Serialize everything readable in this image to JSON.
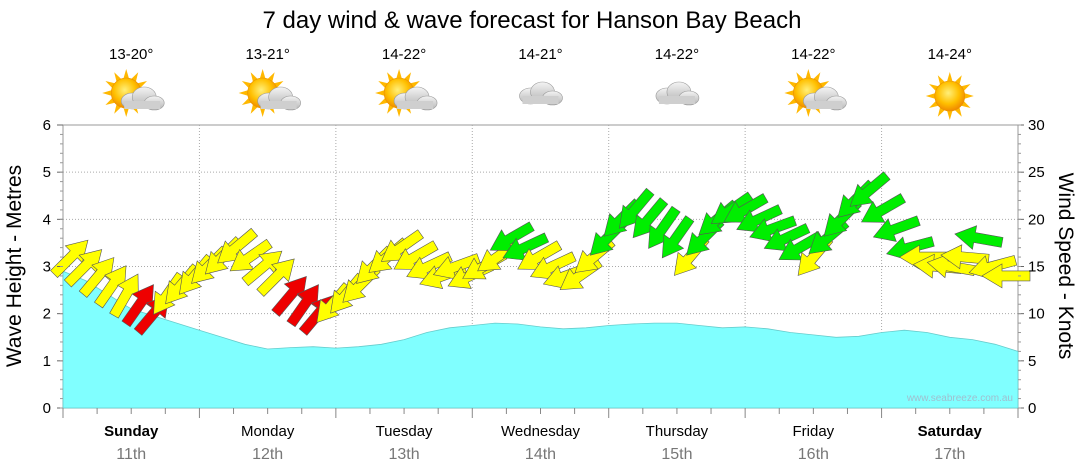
{
  "chart_data": {
    "type": "area",
    "title": "7 day wind & wave forecast for Hanson Bay Beach",
    "ylabel_left": "Wave Height - Metres",
    "ylabel_right": "Wind Speed - Knots",
    "ylim_left": [
      0,
      6
    ],
    "ylim_right": [
      0,
      30
    ],
    "yticks_left": [
      "0",
      "1",
      "2",
      "3",
      "4",
      "5",
      "6"
    ],
    "yticks_right": [
      "0",
      "5",
      "10",
      "15",
      "20",
      "25",
      "30"
    ],
    "watermark": "www.seabreeze.com.au",
    "days": [
      {
        "name": "Sunday",
        "date": "11th",
        "bold": true,
        "temp": "13-20°",
        "weather": "partly-cloudy-icon"
      },
      {
        "name": "Monday",
        "date": "12th",
        "bold": false,
        "temp": "13-21°",
        "weather": "partly-cloudy-icon"
      },
      {
        "name": "Tuesday",
        "date": "13th",
        "bold": false,
        "temp": "14-22°",
        "weather": "partly-cloudy-icon"
      },
      {
        "name": "Wednesday",
        "date": "14th",
        "bold": false,
        "temp": "14-21°",
        "weather": "cloudy-icon"
      },
      {
        "name": "Thursday",
        "date": "15th",
        "bold": false,
        "temp": "14-22°",
        "weather": "cloudy-icon"
      },
      {
        "name": "Friday",
        "date": "16th",
        "bold": false,
        "temp": "14-22°",
        "weather": "partly-cloudy-icon"
      },
      {
        "name": "Saturday",
        "date": "17th",
        "bold": true,
        "temp": "14-24°",
        "weather": "sunny-icon"
      }
    ],
    "wave_height_m": [
      2.9,
      2.7,
      2.4,
      2.1,
      1.95,
      1.8,
      1.65,
      1.5,
      1.35,
      1.25,
      1.28,
      1.3,
      1.27,
      1.3,
      1.35,
      1.45,
      1.6,
      1.7,
      1.75,
      1.8,
      1.78,
      1.72,
      1.68,
      1.7,
      1.75,
      1.78,
      1.8,
      1.8,
      1.75,
      1.7,
      1.72,
      1.68,
      1.6,
      1.55,
      1.5,
      1.52,
      1.6,
      1.65,
      1.6,
      1.5,
      1.45,
      1.35,
      1.2
    ],
    "wind_colors": {
      "light": "#ffff00",
      "moderate": "#00ee00",
      "strong": "#ee0000"
    },
    "wind": [
      {
        "kts": 16,
        "dir": 225,
        "band": "light"
      },
      {
        "kts": 15,
        "dir": 225,
        "band": "light"
      },
      {
        "kts": 14,
        "dir": 220,
        "band": "light"
      },
      {
        "kts": 13,
        "dir": 215,
        "band": "light"
      },
      {
        "kts": 12,
        "dir": 210,
        "band": "light"
      },
      {
        "kts": 11,
        "dir": 215,
        "band": "strong"
      },
      {
        "kts": 10,
        "dir": 220,
        "band": "strong"
      },
      {
        "kts": 12,
        "dir": 35,
        "band": "light"
      },
      {
        "kts": 13,
        "dir": 40,
        "band": "light"
      },
      {
        "kts": 14,
        "dir": 40,
        "band": "light"
      },
      {
        "kts": 15,
        "dir": 45,
        "band": "light"
      },
      {
        "kts": 16,
        "dir": 45,
        "band": "light"
      },
      {
        "kts": 17,
        "dir": 50,
        "band": "light"
      },
      {
        "kts": 16,
        "dir": 55,
        "band": "light"
      },
      {
        "kts": 15,
        "dir": 230,
        "band": "light"
      },
      {
        "kts": 14,
        "dir": 225,
        "band": "light"
      },
      {
        "kts": 12,
        "dir": 220,
        "band": "strong"
      },
      {
        "kts": 11,
        "dir": 215,
        "band": "strong"
      },
      {
        "kts": 10,
        "dir": 220,
        "band": "strong"
      },
      {
        "kts": 11,
        "dir": 40,
        "band": "light"
      },
      {
        "kts": 12,
        "dir": 40,
        "band": "light"
      },
      {
        "kts": 13,
        "dir": 45,
        "band": "light"
      },
      {
        "kts": 15,
        "dir": 45,
        "band": "light"
      },
      {
        "kts": 16,
        "dir": 50,
        "band": "light"
      },
      {
        "kts": 17,
        "dir": 55,
        "band": "light"
      },
      {
        "kts": 16,
        "dir": 60,
        "band": "light"
      },
      {
        "kts": 15,
        "dir": 65,
        "band": "light"
      },
      {
        "kts": 14,
        "dir": 70,
        "band": "light"
      },
      {
        "kts": 15,
        "dir": 70,
        "band": "light"
      },
      {
        "kts": 14,
        "dir": 65,
        "band": "light"
      },
      {
        "kts": 15,
        "dir": 60,
        "band": "light"
      },
      {
        "kts": 16,
        "dir": 55,
        "band": "light"
      },
      {
        "kts": 18,
        "dir": 60,
        "band": "moderate"
      },
      {
        "kts": 17,
        "dir": 65,
        "band": "moderate"
      },
      {
        "kts": 16,
        "dir": 60,
        "band": "light"
      },
      {
        "kts": 15,
        "dir": 65,
        "band": "light"
      },
      {
        "kts": 14,
        "dir": 70,
        "band": "light"
      },
      {
        "kts": 14,
        "dir": 55,
        "band": "light"
      },
      {
        "kts": 16,
        "dir": 50,
        "band": "light"
      },
      {
        "kts": 18,
        "dir": 45,
        "band": "moderate"
      },
      {
        "kts": 20,
        "dir": 45,
        "band": "moderate"
      },
      {
        "kts": 21,
        "dir": 40,
        "band": "moderate"
      },
      {
        "kts": 20,
        "dir": 40,
        "band": "moderate"
      },
      {
        "kts": 19,
        "dir": 35,
        "band": "moderate"
      },
      {
        "kts": 18,
        "dir": 35,
        "band": "moderate"
      },
      {
        "kts": 16,
        "dir": 40,
        "band": "light"
      },
      {
        "kts": 18,
        "dir": 45,
        "band": "moderate"
      },
      {
        "kts": 20,
        "dir": 50,
        "band": "moderate"
      },
      {
        "kts": 21,
        "dir": 55,
        "band": "moderate"
      },
      {
        "kts": 21,
        "dir": 60,
        "band": "moderate"
      },
      {
        "kts": 20,
        "dir": 65,
        "band": "moderate"
      },
      {
        "kts": 19,
        "dir": 70,
        "band": "moderate"
      },
      {
        "kts": 18,
        "dir": 65,
        "band": "moderate"
      },
      {
        "kts": 17,
        "dir": 60,
        "band": "moderate"
      },
      {
        "kts": 16,
        "dir": 40,
        "band": "light"
      },
      {
        "kts": 18,
        "dir": 50,
        "band": "moderate"
      },
      {
        "kts": 20,
        "dir": 45,
        "band": "moderate"
      },
      {
        "kts": 22,
        "dir": 45,
        "band": "moderate"
      },
      {
        "kts": 23,
        "dir": 50,
        "band": "moderate"
      },
      {
        "kts": 21,
        "dir": 60,
        "band": "moderate"
      },
      {
        "kts": 19,
        "dir": 70,
        "band": "moderate"
      },
      {
        "kts": 17,
        "dir": 75,
        "band": "moderate"
      },
      {
        "kts": 16,
        "dir": 90,
        "band": "light"
      },
      {
        "kts": 15,
        "dir": 95,
        "band": "light"
      },
      {
        "kts": 15,
        "dir": 100,
        "band": "light"
      },
      {
        "kts": 16,
        "dir": 95,
        "band": "light"
      },
      {
        "kts": 18,
        "dir": 100,
        "band": "moderate"
      },
      {
        "kts": 15,
        "dir": 75,
        "band": "light"
      },
      {
        "kts": 14,
        "dir": 90,
        "band": "light"
      }
    ]
  }
}
